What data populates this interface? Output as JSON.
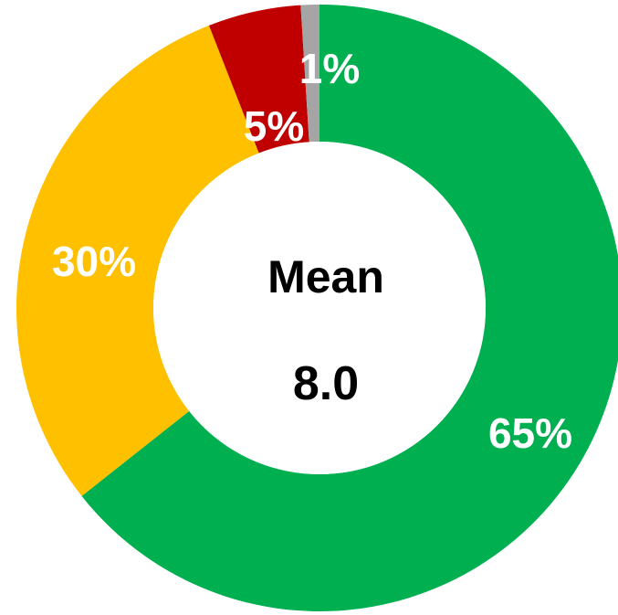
{
  "chart_data": {
    "type": "pie",
    "donut": true,
    "start_angle_deg": 0,
    "direction": "clockwise",
    "slices": [
      {
        "label": "65%",
        "value": 65,
        "color": "#00B050"
      },
      {
        "label": "30%",
        "value": 30,
        "color": "#FFC000"
      },
      {
        "label": "5%",
        "value": 5,
        "color": "#C00000"
      },
      {
        "label": "1%",
        "value": 1,
        "color": "#A5A5A5"
      }
    ],
    "center": {
      "title": "Mean",
      "value": "8.0"
    },
    "legend": "none"
  }
}
